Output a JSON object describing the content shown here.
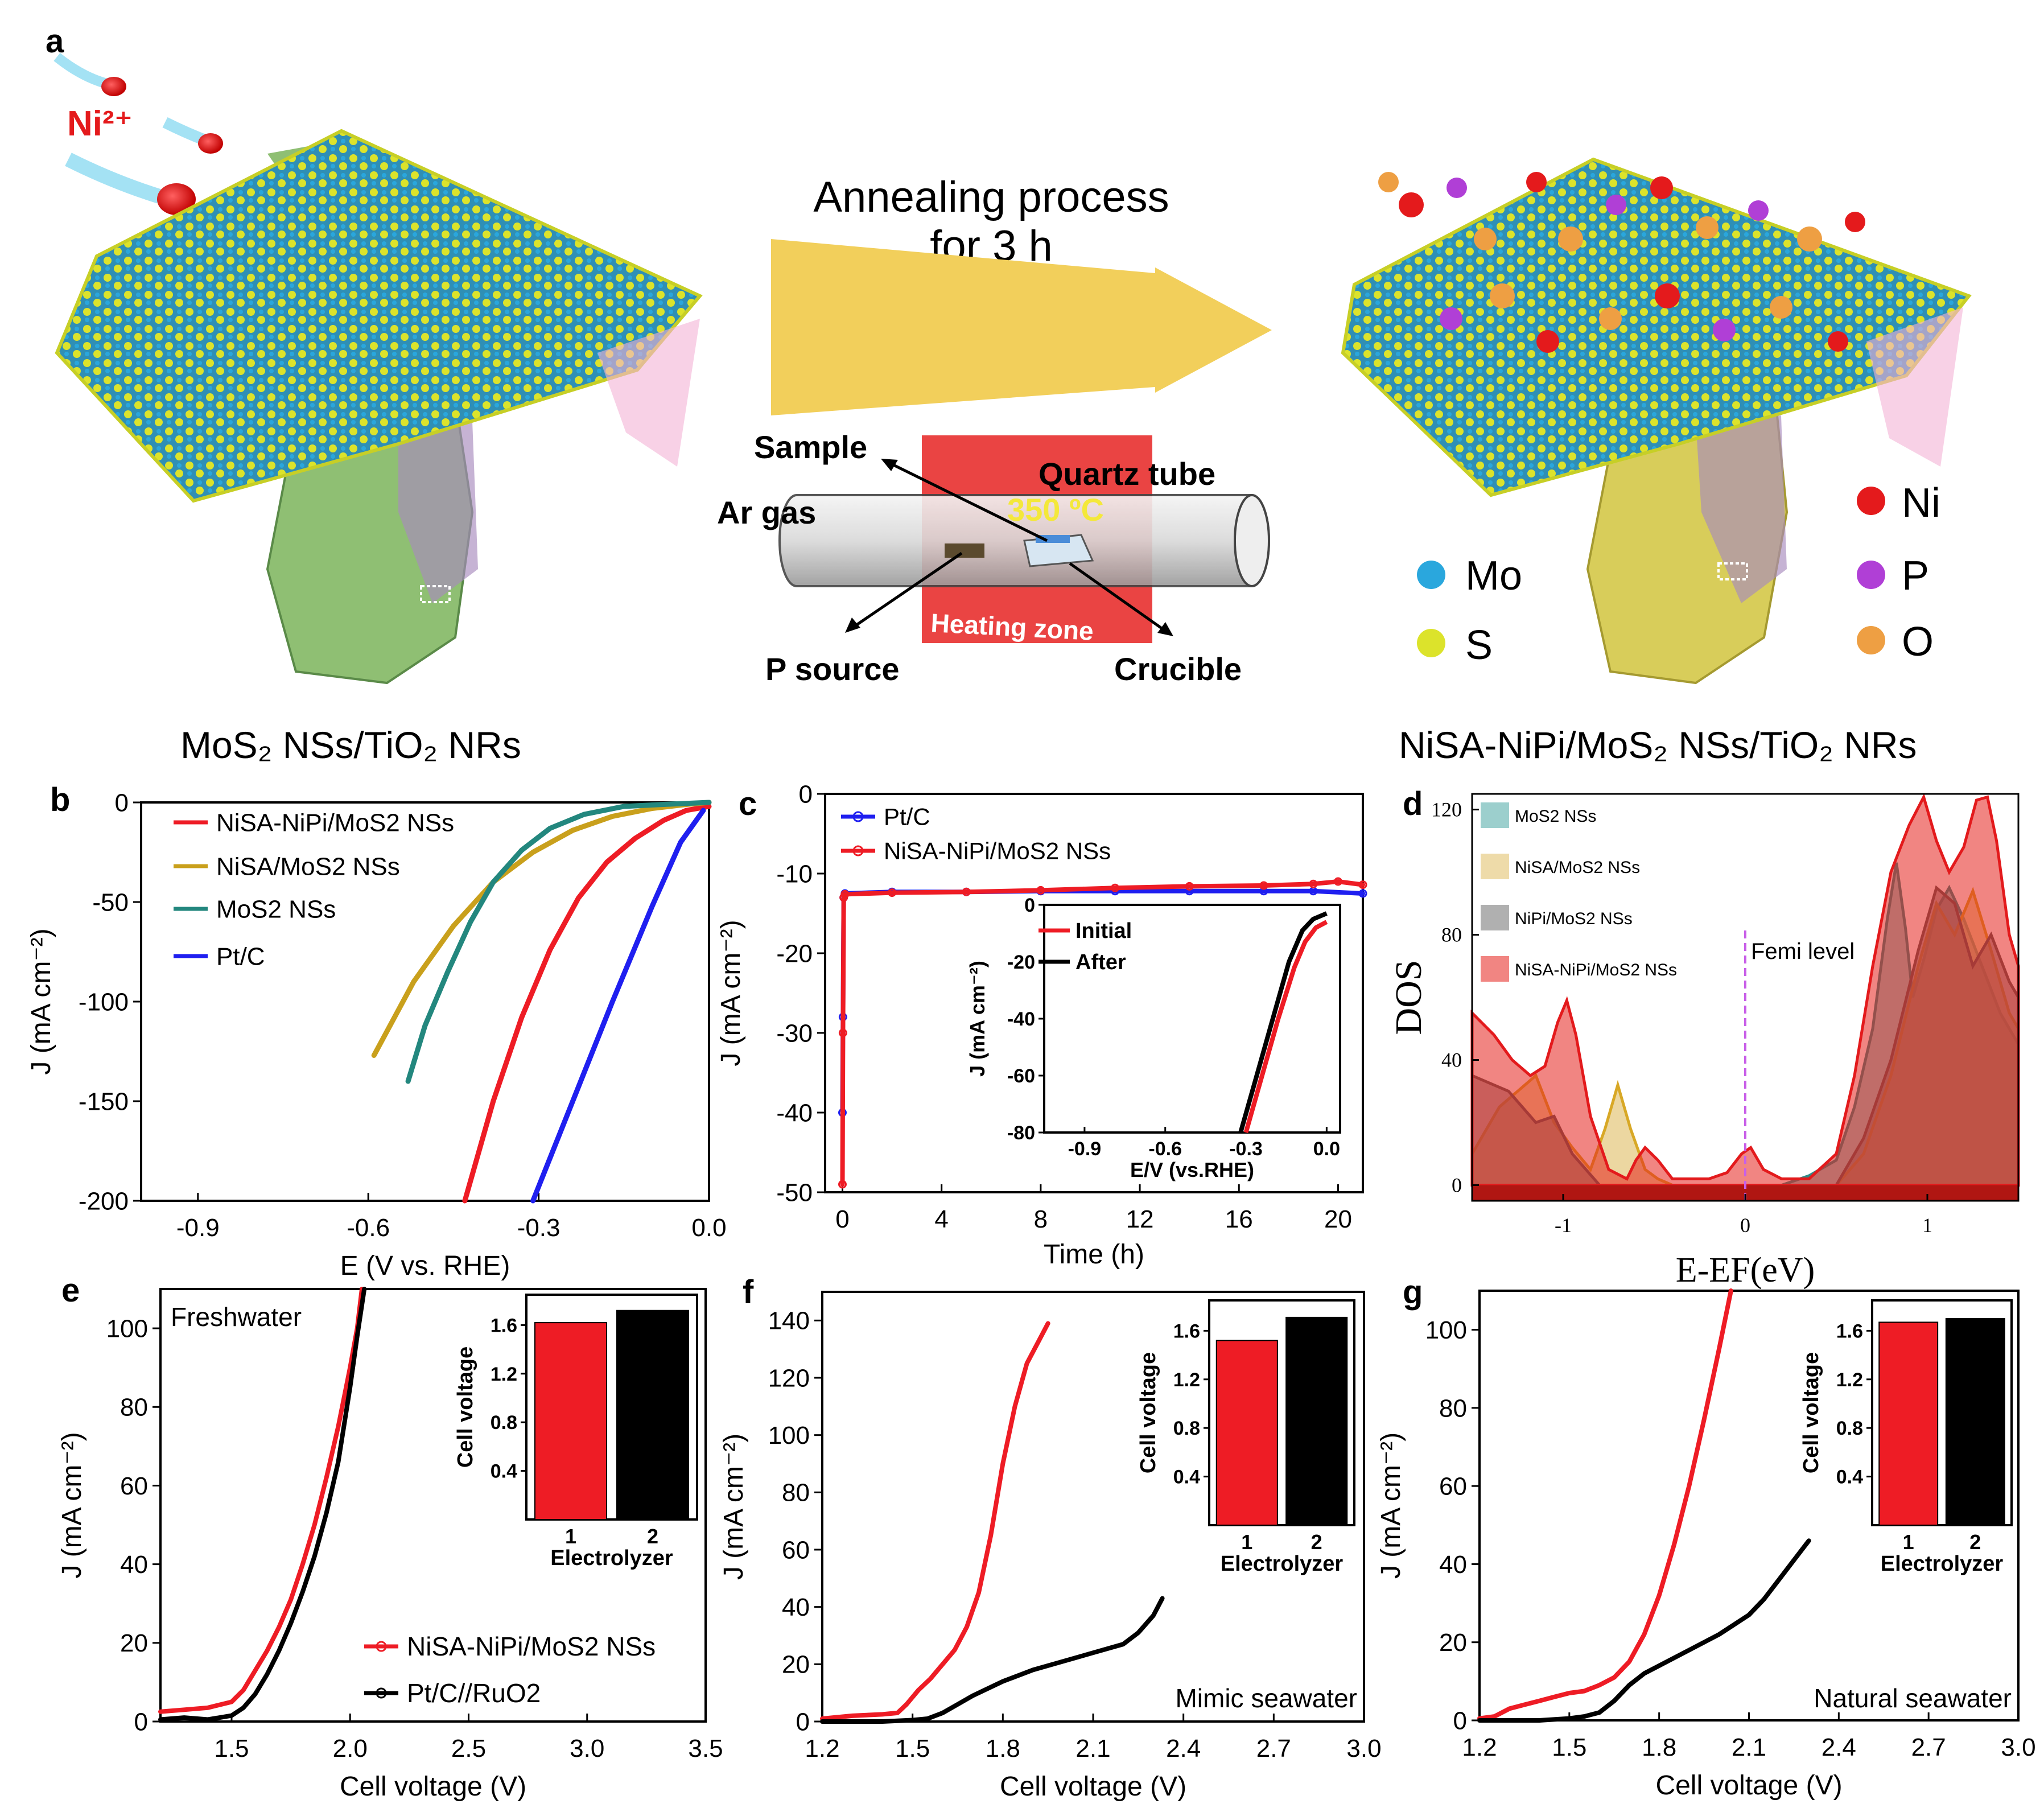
{
  "panel_labels": {
    "a": "a",
    "b": "b",
    "c": "c",
    "d": "d",
    "e": "e",
    "f": "f",
    "g": "g"
  },
  "schematic": {
    "ion_label": "Ni²⁺",
    "process_line1": "Annealing process",
    "process_line2": "for 3 h",
    "furnace": {
      "sample": "Sample",
      "quartz_tube": "Quartz tube",
      "ar_gas": "Ar gas",
      "temperature": "350 ºC",
      "heating_zone": "Heating zone",
      "p_source": "P source",
      "crucible": "Crucible"
    },
    "left_caption": "MoS₂ NSs/TiO₂ NRs",
    "right_caption": "NiSA-NiPi/MoS₂ NSs/TiO₂ NRs",
    "legend": {
      "mo": "Mo",
      "s": "S",
      "ni": "Ni",
      "p": "P",
      "o": "O"
    }
  },
  "colors": {
    "red": "#ee1c25",
    "black": "#000000",
    "blue": "#1f1ff0",
    "gold": "#c9a01c",
    "teal": "#23877e",
    "arrow": "#f2cf5b",
    "mo": "#2aa7dd",
    "s": "#dce32b",
    "ni": "#e41a1c",
    "p": "#b03fd6",
    "o": "#ee9f43",
    "dos_teal": "#4aa7a4",
    "dos_tan": "#e0bd62",
    "dos_grey": "#707070",
    "dos_red": "#e5211c"
  },
  "chart_data": [
    {
      "id": "b",
      "type": "line",
      "xlabel": "E (V vs. RHE)",
      "ylabel": "J (mA cm⁻²)",
      "xlim": [
        -1.0,
        0.0
      ],
      "ylim": [
        -200,
        0
      ],
      "xticks": [
        -0.9,
        -0.6,
        -0.3,
        0.0
      ],
      "yticks": [
        0,
        -50,
        -100,
        -150,
        -200
      ],
      "series": [
        {
          "name": "NiSA-NiPi/MoS2 NSs",
          "x": [
            -0.43,
            -0.38,
            -0.33,
            -0.28,
            -0.23,
            -0.18,
            -0.13,
            -0.08,
            -0.04,
            0.0
          ],
          "y": [
            -200,
            -150,
            -108,
            -74,
            -48,
            -30,
            -18,
            -9,
            -4,
            -2
          ]
        },
        {
          "name": "NiSA/MoS2 NSs",
          "x": [
            -0.59,
            -0.52,
            -0.45,
            -0.38,
            -0.31,
            -0.24,
            -0.17,
            -0.1,
            -0.04,
            0.0
          ],
          "y": [
            -127,
            -90,
            -62,
            -40,
            -25,
            -14,
            -7,
            -3,
            -1,
            0
          ]
        },
        {
          "name": "MoS2 NSs",
          "x": [
            -0.53,
            -0.5,
            -0.46,
            -0.42,
            -0.38,
            -0.33,
            -0.28,
            -0.22,
            -0.15,
            -0.08,
            0.0
          ],
          "y": [
            -140,
            -112,
            -85,
            -60,
            -40,
            -24,
            -13,
            -6,
            -2,
            -1,
            0
          ]
        },
        {
          "name": "Pt/C",
          "x": [
            -0.31,
            -0.24,
            -0.17,
            -0.1,
            -0.05,
            -0.01
          ],
          "y": [
            -200,
            -150,
            -100,
            -52,
            -20,
            -4
          ]
        }
      ]
    },
    {
      "id": "c",
      "type": "line",
      "xlabel": "Time (h)",
      "ylabel": "J (mA cm⁻²)",
      "xlim": [
        -0.7,
        21
      ],
      "ylim": [
        -50,
        0
      ],
      "xticks": [
        0,
        4,
        8,
        12,
        16,
        20
      ],
      "yticks": [
        0,
        -10,
        -20,
        -30,
        -40,
        -50
      ],
      "series": [
        {
          "name": "Pt/C",
          "x": [
            0,
            0.02,
            0.05,
            0.1,
            2,
            5,
            8,
            11,
            14,
            17,
            19,
            21
          ],
          "y": [
            -40,
            -28,
            -13,
            -12.5,
            -12.3,
            -12.3,
            -12.2,
            -12.2,
            -12.2,
            -12.2,
            -12.2,
            -12.5
          ]
        },
        {
          "name": "NiSA-NiPi/MoS2 NSs",
          "x": [
            0,
            0.02,
            0.05,
            0.1,
            2,
            5,
            8,
            11,
            14,
            17,
            19,
            20,
            21
          ],
          "y": [
            -49,
            -30,
            -13,
            -12.6,
            -12.4,
            -12.3,
            -12.1,
            -11.8,
            -11.6,
            -11.5,
            -11.3,
            -11.0,
            -11.4
          ]
        }
      ],
      "inset": {
        "xlabel": "E/V (vs.RHE)",
        "ylabel": "J (mA cm⁻²)",
        "xlim": [
          -1.05,
          0.05
        ],
        "ylim": [
          -80,
          0
        ],
        "xticks": [
          -0.9,
          -0.6,
          -0.3,
          0.0
        ],
        "yticks": [
          0,
          -20,
          -40,
          -60,
          -80
        ],
        "series": [
          {
            "name": "Initial",
            "x": [
              -0.3,
              -0.24,
              -0.18,
              -0.12,
              -0.08,
              -0.04,
              0.0
            ],
            "y": [
              -80,
              -60,
              -40,
              -22,
              -13,
              -8,
              -6
            ]
          },
          {
            "name": "After",
            "x": [
              -0.32,
              -0.26,
              -0.2,
              -0.14,
              -0.09,
              -0.05,
              0.0
            ],
            "y": [
              -80,
              -60,
              -40,
              -20,
              -9,
              -5,
              -3
            ]
          }
        ]
      }
    },
    {
      "id": "d",
      "type": "area",
      "xlabel": "E-EF(eV)",
      "ylabel": "DOS",
      "xlim": [
        -1.5,
        1.5
      ],
      "ylim": [
        -5,
        125
      ],
      "xticks": [
        -1,
        0,
        1
      ],
      "yticks": [
        0,
        40,
        80,
        120
      ],
      "annotation": "Femi level",
      "series": [
        {
          "name": "MoS2 NSs",
          "x": [
            -1.5,
            0.2,
            0.35,
            0.5,
            0.6,
            0.7,
            0.78,
            0.83,
            0.88,
            0.92,
            0.98,
            1.05,
            1.12,
            1.2,
            1.3,
            1.4,
            1.5
          ],
          "y": [
            0,
            0,
            3,
            8,
            25,
            50,
            85,
            103,
            82,
            60,
            72,
            88,
            95,
            85,
            70,
            55,
            45
          ]
        },
        {
          "name": "NiSA/MoS2 NSs",
          "x": [
            -1.5,
            -1.35,
            -1.25,
            -1.15,
            -1.05,
            -0.95,
            -0.85,
            -0.77,
            -0.7,
            -0.63,
            -0.55,
            -0.48,
            -0.4,
            0.5,
            0.65,
            0.8,
            0.95,
            1.05,
            1.15,
            1.25,
            1.35,
            1.45,
            1.5
          ],
          "y": [
            10,
            25,
            30,
            35,
            20,
            12,
            5,
            18,
            32,
            18,
            5,
            2,
            0,
            0,
            10,
            35,
            70,
            90,
            80,
            94,
            75,
            55,
            50
          ]
        },
        {
          "name": "NiPi/MoS2 NSs",
          "x": [
            -1.5,
            -1.3,
            -1.15,
            -1.05,
            -0.95,
            -0.8,
            -0.6,
            0.5,
            0.65,
            0.8,
            0.95,
            1.05,
            1.15,
            1.25,
            1.35,
            1.45,
            1.5
          ],
          "y": [
            35,
            30,
            20,
            22,
            10,
            0,
            0,
            0,
            15,
            40,
            75,
            95,
            90,
            70,
            80,
            65,
            60
          ]
        },
        {
          "name": "NiSA-NiPi/MoS2 NSs",
          "x": [
            -1.5,
            -1.38,
            -1.28,
            -1.18,
            -1.1,
            -1.03,
            -0.98,
            -0.93,
            -0.85,
            -0.75,
            -0.65,
            -0.6,
            -0.55,
            -0.48,
            -0.4,
            -0.3,
            -0.2,
            -0.1,
            -0.02,
            0.03,
            0.1,
            0.2,
            0.35,
            0.5,
            0.6,
            0.7,
            0.8,
            0.9,
            0.98,
            1.05,
            1.12,
            1.2,
            1.27,
            1.33,
            1.38,
            1.45,
            1.5
          ],
          "y": [
            55,
            48,
            40,
            35,
            38,
            52,
            59,
            48,
            22,
            5,
            2,
            8,
            12,
            8,
            2,
            2,
            2,
            4,
            10,
            12,
            5,
            2,
            2,
            10,
            35,
            70,
            100,
            115,
            124,
            110,
            100,
            108,
            123,
            124,
            110,
            80,
            70
          ]
        }
      ]
    },
    {
      "id": "e",
      "type": "line",
      "xlabel": "Cell voltage (V)",
      "ylabel": "J (mA cm⁻²)",
      "xlim": [
        1.2,
        3.5
      ],
      "ylim": [
        0,
        110
      ],
      "xticks": [
        1.5,
        2.0,
        2.5,
        3.0,
        3.5
      ],
      "yticks": [
        0,
        20,
        40,
        60,
        80,
        100
      ],
      "annotation": "Freshwater",
      "series": [
        {
          "name": "NiSA-NiPi/MoS2 NSs",
          "x": [
            1.2,
            1.3,
            1.4,
            1.5,
            1.55,
            1.6,
            1.65,
            1.7,
            1.75,
            1.8,
            1.85,
            1.9,
            1.95,
            2.0,
            2.03,
            2.05
          ],
          "y": [
            2.5,
            3,
            3.5,
            5,
            8,
            13,
            18,
            24,
            31,
            40,
            50,
            62,
            75,
            90,
            100,
            110
          ]
        },
        {
          "name": "Pt/C//RuO2",
          "x": [
            1.2,
            1.3,
            1.4,
            1.5,
            1.55,
            1.6,
            1.65,
            1.7,
            1.75,
            1.8,
            1.85,
            1.9,
            1.95,
            2.0,
            2.03,
            2.06
          ],
          "y": [
            0.5,
            1,
            0.5,
            1.5,
            3.5,
            7,
            12,
            18,
            25,
            33,
            42,
            53,
            66,
            85,
            98,
            110
          ]
        }
      ],
      "inset": {
        "type": "bar",
        "xlabel": "Electrolyzer",
        "ylabel": "Cell voltage",
        "categories": [
          "1",
          "2"
        ],
        "values": [
          1.62,
          1.72
        ],
        "ylim": [
          0,
          1.85
        ],
        "yticks": [
          0.4,
          0.8,
          1.2,
          1.6
        ]
      }
    },
    {
      "id": "f",
      "type": "line",
      "xlabel": "Cell voltage (V)",
      "ylabel": "J (mA cm⁻²)",
      "xlim": [
        1.2,
        3.0
      ],
      "ylim": [
        0,
        150
      ],
      "xticks": [
        1.2,
        1.5,
        1.8,
        2.1,
        2.4,
        2.7,
        3.0
      ],
      "yticks": [
        0,
        20,
        40,
        60,
        80,
        100,
        120,
        140
      ],
      "annotation": "Mimic seawater",
      "series": [
        {
          "name": "NiSA-NiPi/MoS2 NSs",
          "x": [
            1.2,
            1.3,
            1.4,
            1.45,
            1.48,
            1.52,
            1.56,
            1.6,
            1.64,
            1.68,
            1.72,
            1.76,
            1.8,
            1.84,
            1.88,
            1.92,
            1.95
          ],
          "y": [
            1,
            2,
            2.5,
            3,
            6,
            11,
            15,
            20,
            25,
            33,
            45,
            65,
            90,
            110,
            125,
            133,
            139
          ]
        },
        {
          "name": "Pt/C//RuO2",
          "x": [
            1.2,
            1.4,
            1.5,
            1.55,
            1.6,
            1.65,
            1.7,
            1.8,
            1.9,
            2.0,
            2.1,
            2.2,
            2.25,
            2.3,
            2.33
          ],
          "y": [
            0,
            0,
            0.5,
            1,
            3,
            6,
            9,
            14,
            18,
            21,
            24,
            27,
            31,
            37,
            43
          ]
        }
      ],
      "inset": {
        "type": "bar",
        "xlabel": "Electrolyzer",
        "ylabel": "Cell voltage",
        "categories": [
          "1",
          "2"
        ],
        "values": [
          1.52,
          1.71
        ],
        "ylim": [
          0,
          1.85
        ],
        "yticks": [
          0.4,
          0.8,
          1.2,
          1.6
        ]
      }
    },
    {
      "id": "g",
      "type": "line",
      "xlabel": "Cell voltage (V)",
      "ylabel": "J (mA cm⁻²)",
      "xlim": [
        1.2,
        3.0
      ],
      "ylim": [
        0,
        110
      ],
      "xticks": [
        1.2,
        1.5,
        1.8,
        2.1,
        2.4,
        2.7,
        3.0
      ],
      "yticks": [
        0,
        20,
        40,
        60,
        80,
        100
      ],
      "annotation": "Natural seawater",
      "series": [
        {
          "name": "NiSA-NiPi/MoS2 NSs",
          "x": [
            1.2,
            1.25,
            1.3,
            1.35,
            1.4,
            1.45,
            1.5,
            1.55,
            1.6,
            1.65,
            1.7,
            1.75,
            1.8,
            1.85,
            1.9,
            1.95,
            2.0,
            2.04
          ],
          "y": [
            0.5,
            1,
            3,
            4,
            5,
            6,
            7,
            7.5,
            9,
            11,
            15,
            22,
            32,
            45,
            60,
            77,
            95,
            110
          ]
        },
        {
          "name": "Pt/C//RuO2",
          "x": [
            1.2,
            1.3,
            1.4,
            1.5,
            1.55,
            1.6,
            1.65,
            1.7,
            1.75,
            1.8,
            1.9,
            2.0,
            2.1,
            2.15,
            2.2,
            2.25,
            2.3
          ],
          "y": [
            0,
            0,
            0,
            0.5,
            1,
            2,
            5,
            9,
            12,
            14,
            18,
            22,
            27,
            31,
            36,
            41,
            46
          ]
        }
      ],
      "inset": {
        "type": "bar",
        "xlabel": "Electrolyzer",
        "ylabel": "Cell voltage",
        "categories": [
          "1",
          "2"
        ],
        "values": [
          1.67,
          1.7
        ],
        "ylim": [
          0,
          1.85
        ],
        "yticks": [
          0.4,
          0.8,
          1.2,
          1.6
        ]
      }
    }
  ]
}
